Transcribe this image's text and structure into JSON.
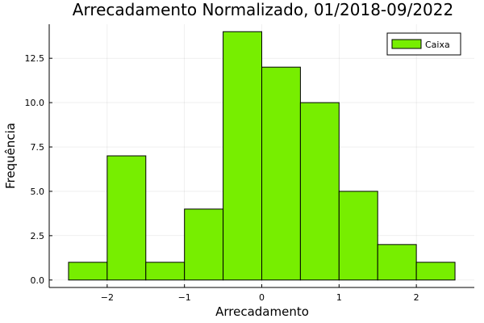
{
  "chart_data": {
    "type": "bar",
    "title": "Arrecadamento Normalizado, 01/2018-09/2022",
    "xlabel": "Arrecadamento",
    "ylabel": "Frequência",
    "bin_edges": [
      -2.5,
      -2.0,
      -1.5,
      -1.0,
      -0.5,
      0.0,
      0.5,
      1.0,
      1.5,
      2.0,
      2.5
    ],
    "values": [
      1,
      7,
      1,
      4,
      14,
      12,
      10,
      5,
      2,
      1
    ],
    "series": [
      {
        "name": "Caixa",
        "color": "#77ee00"
      }
    ],
    "xlim": [
      -2.75,
      2.75
    ],
    "ylim": [
      -0.42,
      14.42
    ],
    "xticks": [
      -2,
      -1,
      0,
      1,
      2
    ],
    "xtick_labels": [
      "−2",
      "−1",
      "0",
      "1",
      "2"
    ],
    "yticks": [
      0,
      2.5,
      5,
      7.5,
      10,
      12.5
    ],
    "ytick_labels": [
      "0.0",
      "2.5",
      "5.0",
      "7.5",
      "10.0",
      "12.5"
    ],
    "grid": true,
    "legend_position": "top-right"
  }
}
